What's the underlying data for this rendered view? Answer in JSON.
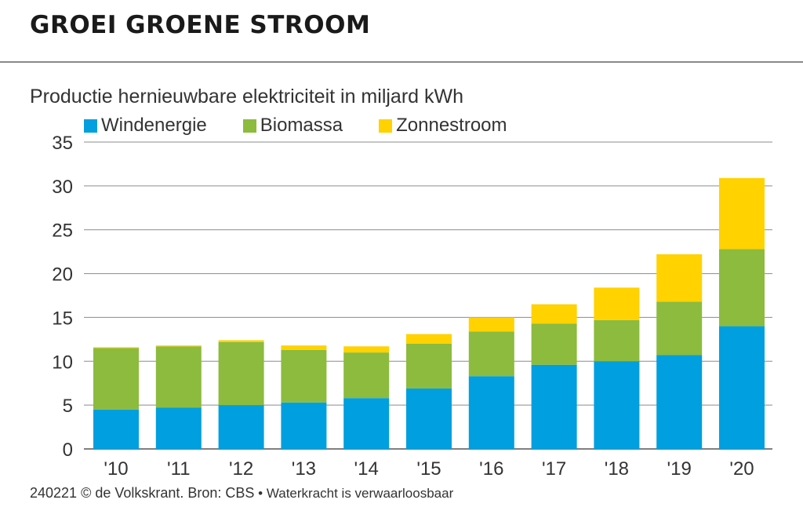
{
  "title": "GROEI GROENE STROOM",
  "footer": {
    "credit": "240221 © de Volkskrant. Bron: CBS",
    "note": " • Waterkracht is verwaarloosbaar"
  },
  "colors": {
    "wind": "#009fdf",
    "biomass": "#8cbb3e",
    "solar": "#ffd200"
  },
  "chart_data": {
    "type": "bar",
    "stacked": true,
    "subtitle": "Productie hernieuwbare elektriciteit in miljard kWh",
    "categories": [
      "'10",
      "'11",
      "'12",
      "'13",
      "'14",
      "'15",
      "'16",
      "'17",
      "'18",
      "'19",
      "'20"
    ],
    "series": [
      {
        "name": "Windenergie",
        "color": "#009fdf",
        "values": [
          4.5,
          4.7,
          5.0,
          5.3,
          5.8,
          6.9,
          8.3,
          9.6,
          10.0,
          10.7,
          14.0
        ]
      },
      {
        "name": "Biomassa",
        "color": "#8cbb3e",
        "values": [
          7.0,
          7.0,
          7.2,
          6.0,
          5.2,
          5.1,
          5.1,
          4.7,
          4.7,
          6.1,
          8.8
        ]
      },
      {
        "name": "Zonnestroom",
        "color": "#ffd200",
        "values": [
          0.1,
          0.1,
          0.2,
          0.5,
          0.7,
          1.1,
          1.6,
          2.2,
          3.7,
          5.4,
          8.1
        ]
      }
    ],
    "ylim": [
      0,
      35
    ],
    "yticks": [
      0,
      5,
      10,
      15,
      20,
      25,
      30,
      35
    ],
    "grid": true,
    "legend_position": "top-left"
  }
}
